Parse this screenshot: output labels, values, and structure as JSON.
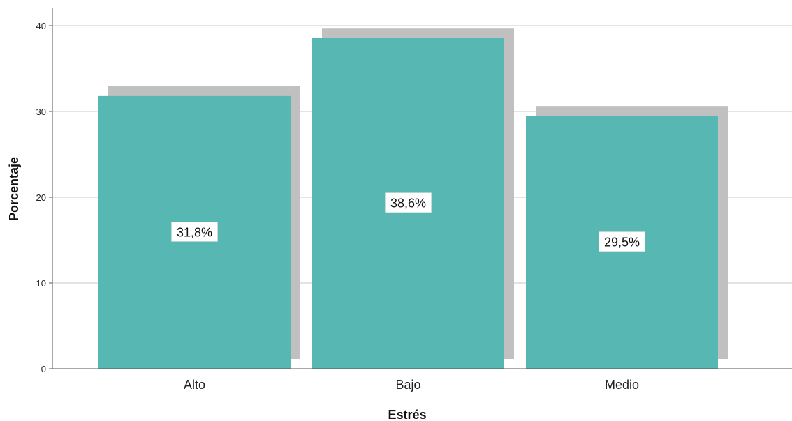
{
  "chart_data": {
    "type": "bar",
    "categories": [
      "Alto",
      "Bajo",
      "Medio"
    ],
    "values": [
      31.8,
      38.6,
      29.5
    ],
    "data_labels": [
      "31,8%",
      "38,6%",
      "29,5%"
    ],
    "xlabel": "Estrés",
    "ylabel": "Porcentaje",
    "ylim": [
      0,
      40
    ],
    "yticks": [
      0,
      10,
      20,
      30,
      40
    ],
    "ytick_labels": [
      "0",
      "10",
      "20",
      "30",
      "40"
    ],
    "grid": true,
    "bar_style": "3d-shadow",
    "colors": {
      "bar": "#57b7b2",
      "shadow": "#c0c0c0",
      "grid": "#c8c8c8",
      "axis": "#555555",
      "label_bg": "#ffffff"
    }
  }
}
